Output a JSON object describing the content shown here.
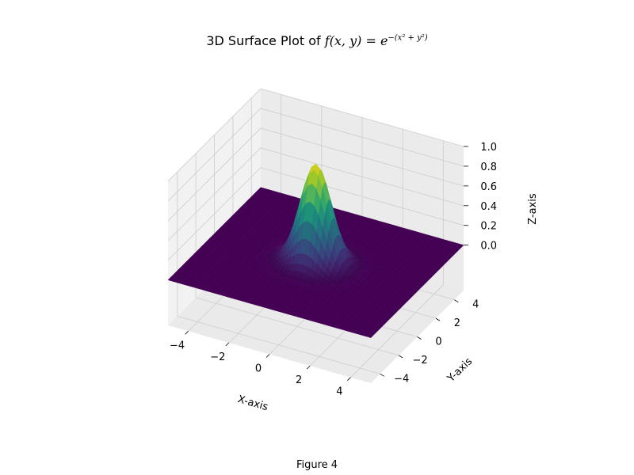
{
  "figure": {
    "title_prefix": "3D Surface Plot of ",
    "title_func": "f",
    "title_args": "(x, y) = e",
    "title_exp": "−(x² + y²)",
    "caption": "Figure 4"
  },
  "chart_data": {
    "type": "surface",
    "function": "f(x,y) = exp(-(x^2 + y^2))",
    "title": "3D Surface Plot of f(x,y) = e^{-(x^2+y^2)}",
    "xlabel": "X-axis",
    "ylabel": "Y-axis",
    "zlabel": "Z-axis",
    "xlim": [
      -5,
      5
    ],
    "ylim": [
      -5,
      5
    ],
    "zlim": [
      0,
      1
    ],
    "x_ticks": [
      -4,
      -2,
      0,
      2,
      4
    ],
    "y_ticks": [
      -4,
      -2,
      0,
      2,
      4
    ],
    "z_ticks": [
      0.0,
      0.2,
      0.4,
      0.6,
      0.8,
      1.0
    ],
    "x_tick_labels": [
      "−4",
      "−2",
      "0",
      "2",
      "4"
    ],
    "y_tick_labels": [
      "−4",
      "−2",
      "0",
      "2",
      "4"
    ],
    "z_tick_labels": [
      "0.0",
      "0.2",
      "0.4",
      "0.6",
      "0.8",
      "1.0"
    ],
    "peak": {
      "x": 0,
      "y": 0,
      "z": 1.0
    },
    "colormap": "viridis",
    "grid": true
  }
}
